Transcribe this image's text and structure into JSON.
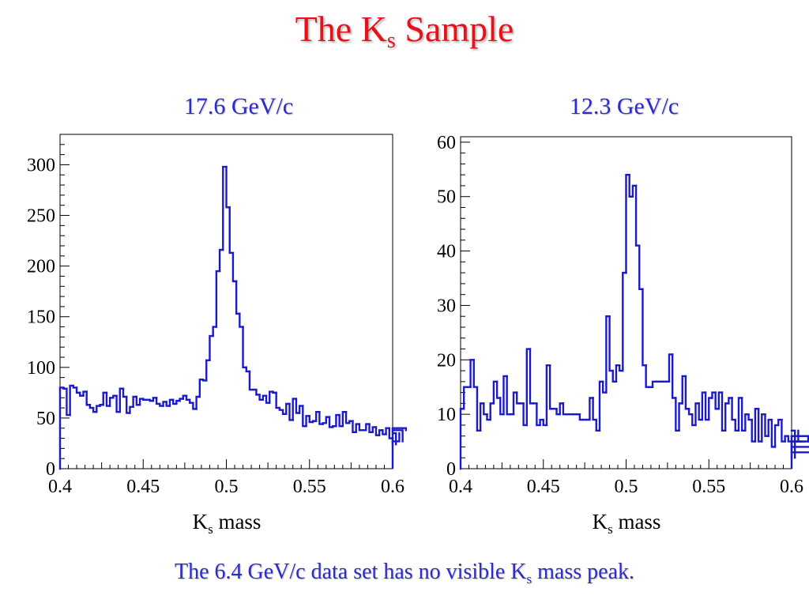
{
  "title": {
    "main": "The K",
    "sub": "s",
    "rest": " Sample"
  },
  "caption": {
    "before": "The 6.4 GeV/c data set has no visible K",
    "sub": "s",
    "after": " mass peak."
  },
  "colors": {
    "title": "#e8101a",
    "text_blue": "#2b2bd0",
    "histogram": "#1a1acc",
    "axes": "#000000"
  },
  "chart_data": [
    {
      "type": "histogram",
      "title": "17.6 GeV/c",
      "xlabel": {
        "main": "K",
        "sub": "s",
        "rest": " mass"
      },
      "ylabel": "",
      "xlim": [
        0.4,
        0.6
      ],
      "ylim": [
        0,
        330
      ],
      "xticks": [
        0.4,
        0.45,
        0.5,
        0.55,
        0.6
      ],
      "xtick_labels": [
        "0.4",
        "0.45",
        "0.5",
        "0.55",
        "0.6"
      ],
      "yticks": [
        0,
        50,
        100,
        150,
        200,
        250,
        300
      ],
      "ytick_labels": [
        "0",
        "50",
        "100",
        "150",
        "200",
        "250",
        "300"
      ],
      "bin_width": 0.002,
      "values": [
        80,
        79,
        53,
        82,
        80,
        75,
        72,
        76,
        63,
        60,
        56,
        62,
        63,
        75,
        62,
        70,
        72,
        56,
        79,
        71,
        55,
        61,
        71,
        63,
        69,
        68,
        68,
        67,
        70,
        64,
        62,
        66,
        62,
        68,
        64,
        67,
        69,
        72,
        68,
        65,
        59,
        71,
        88,
        87,
        107,
        131,
        140,
        195,
        216,
        298,
        258,
        213,
        185,
        153,
        140,
        100,
        96,
        78,
        78,
        73,
        68,
        72,
        65,
        76,
        75,
        60,
        58,
        54,
        64,
        48,
        69,
        55,
        62,
        42,
        52,
        46,
        47,
        56,
        44,
        45,
        51,
        41,
        42,
        53,
        42,
        56,
        45,
        47,
        36,
        44,
        38,
        38,
        44,
        36,
        41,
        33,
        38,
        34,
        40,
        30,
        24,
        35,
        27,
        38,
        40
      ]
    },
    {
      "type": "histogram",
      "title": "12.3 GeV/c",
      "xlabel": {
        "main": "K",
        "sub": "s",
        "rest": " mass"
      },
      "ylabel": "",
      "xlim": [
        0.4,
        0.6
      ],
      "ylim": [
        0,
        61
      ],
      "xticks": [
        0.4,
        0.45,
        0.5,
        0.55,
        0.6
      ],
      "xtick_labels": [
        "0.4",
        "0.45",
        "0.5",
        "0.55",
        "0.6"
      ],
      "yticks": [
        0,
        10,
        20,
        30,
        40,
        50,
        60
      ],
      "ytick_labels": [
        "0",
        "10",
        "20",
        "30",
        "40",
        "50",
        "60"
      ],
      "bin_width": 0.002,
      "values": [
        11,
        15,
        15,
        20,
        15,
        7,
        12,
        10,
        9,
        12,
        16,
        13,
        10,
        17,
        10,
        10,
        14,
        12,
        12,
        8,
        22,
        12,
        12,
        8,
        9,
        8,
        19,
        11,
        11,
        10,
        12,
        10,
        10,
        10,
        10,
        10,
        9,
        9,
        9,
        13,
        9,
        7,
        16,
        14,
        28,
        18,
        16,
        19,
        18,
        36,
        54,
        50,
        52,
        41,
        33,
        19,
        15,
        15,
        16,
        16,
        16,
        16,
        16,
        21,
        13,
        7,
        12,
        17,
        11,
        10,
        8,
        12,
        9,
        14,
        9,
        13,
        14,
        11,
        14,
        7,
        12,
        13,
        9,
        7,
        13,
        7,
        10,
        9,
        5,
        11,
        5,
        10,
        6,
        9,
        4,
        8,
        9,
        5,
        6,
        5,
        2,
        7,
        5,
        5,
        5,
        6,
        4,
        5,
        3,
        6
      ]
    }
  ]
}
